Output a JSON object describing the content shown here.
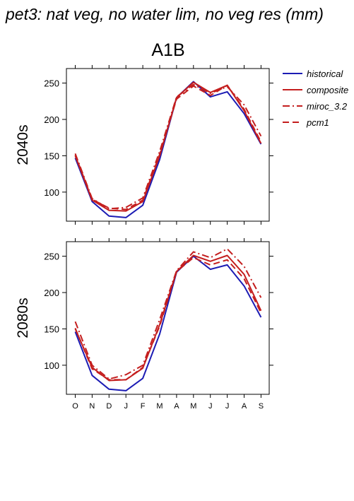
{
  "title": "pet3: nat veg, no water lim, no veg res (mm)",
  "chart_data": {
    "type": "line",
    "scenario": "A1B",
    "categories": [
      "O",
      "N",
      "D",
      "J",
      "F",
      "M",
      "A",
      "M",
      "J",
      "J",
      "A",
      "S"
    ],
    "ylim": [
      60,
      270
    ],
    "yticks": [
      100,
      150,
      200,
      250
    ],
    "grid": false,
    "legend_placement": "right",
    "legend": [
      {
        "name": "historical",
        "color": "#1c1cb4",
        "dash": ""
      },
      {
        "name": "composite",
        "color": "#c41e1e",
        "dash": ""
      },
      {
        "name": "miroc_3.2",
        "color": "#c41e1e",
        "dash": "10,4,2,4"
      },
      {
        "name": "pcm1",
        "color": "#c41e1e",
        "dash": "9,5"
      }
    ],
    "panels": [
      {
        "label": "2040s",
        "series": [
          {
            "name": "historical",
            "values": [
              147,
              87,
              67,
              65,
              82,
              145,
              230,
              252,
              231,
              238,
              208,
              166
            ]
          },
          {
            "name": "composite",
            "values": [
              150,
              89,
              75,
              74,
              87,
              150,
              230,
              251,
              237,
              247,
              212,
              167
            ]
          },
          {
            "name": "miroc_3.2",
            "values": [
              153,
              91,
              77,
              79,
              92,
              156,
              231,
              248,
              236,
              245,
              220,
              177
            ]
          },
          {
            "name": "pcm1",
            "values": [
              151,
              90,
              78,
              76,
              89,
              152,
              228,
              246,
              233,
              247,
              214,
              169
            ]
          }
        ]
      },
      {
        "label": "2080s",
        "series": [
          {
            "name": "historical",
            "values": [
              146,
              86,
              67,
              65,
              82,
              143,
              228,
              250,
              232,
              238,
              209,
              166
            ]
          },
          {
            "name": "composite",
            "values": [
              150,
              97,
              79,
              80,
              96,
              156,
              229,
              251,
              243,
              251,
              225,
              175
            ]
          },
          {
            "name": "miroc_3.2",
            "values": [
              160,
              100,
              81,
              87,
              100,
              163,
              230,
              256,
              248,
              260,
              236,
              193
            ]
          },
          {
            "name": "pcm1",
            "values": [
              151,
              95,
              80,
              80,
              97,
              154,
              229,
              248,
              238,
              245,
              219,
              172
            ]
          }
        ]
      }
    ]
  }
}
